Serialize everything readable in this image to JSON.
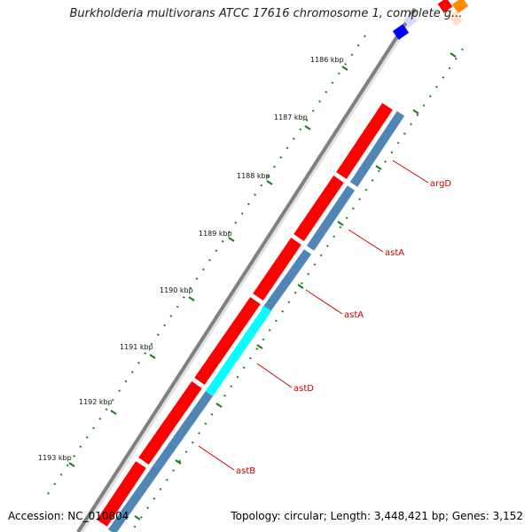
{
  "title": "Burkholderia multivorans ATCC 17616 chromosome 1, complete g...",
  "footer": {
    "accession": "Accession: NC_010804",
    "summary": "Topology: circular; Length: 3,448,421 bp; Genes: 3,152"
  },
  "colors": {
    "backbone": "#808080",
    "forward_gene": "#ff0000",
    "reverse_gene": "#4f86b6",
    "highlight_gene": "#00ffff",
    "tick_marks": "#1f7a1f",
    "label_text": "#cc0000",
    "leader_line": "#cc0000"
  },
  "scale_ticks": [
    {
      "label": "1186 kbp"
    },
    {
      "label": "1187 kbp"
    },
    {
      "label": "1188 kbp"
    },
    {
      "label": "1189 kbp"
    },
    {
      "label": "1190 kbp"
    },
    {
      "label": "1191 kbp"
    },
    {
      "label": "1192 kbp"
    },
    {
      "label": "1193 kbp"
    }
  ],
  "gene_labels": [
    {
      "label": "argD"
    },
    {
      "label": "astA"
    },
    {
      "label": "astA"
    },
    {
      "label": "astD"
    },
    {
      "label": "astB"
    }
  ]
}
